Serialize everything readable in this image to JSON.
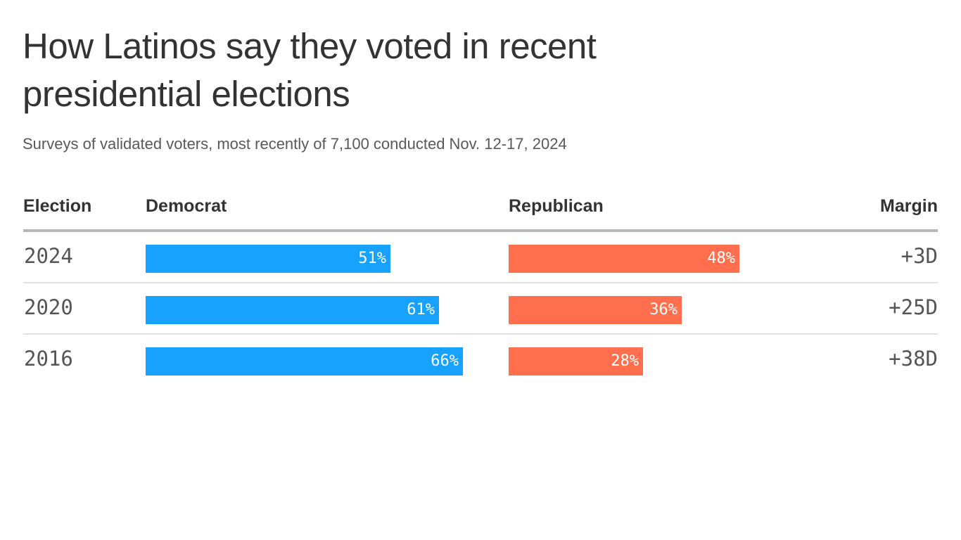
{
  "chart_data": {
    "type": "bar",
    "title": "How Latinos say they voted in recent presidential elections",
    "subtitle": "Surveys of validated voters, most recently of 7,100 conducted Nov. 12-17, 2024",
    "columns": {
      "election": "Election",
      "democrat": "Democrat",
      "republican": "Republican",
      "margin": "Margin"
    },
    "categories": [
      "2024",
      "2020",
      "2016"
    ],
    "series": [
      {
        "name": "Democrat",
        "color": "#17a2ff",
        "values": [
          51,
          61,
          66
        ],
        "labels": [
          "51%",
          "61%",
          "66%"
        ]
      },
      {
        "name": "Republican",
        "color": "#ff6f4d",
        "values": [
          48,
          36,
          28
        ],
        "labels": [
          "48%",
          "36%",
          "28%"
        ]
      }
    ],
    "margins": [
      "+3D",
      "+25D",
      "+38D"
    ],
    "xlim": [
      0,
      100
    ]
  }
}
